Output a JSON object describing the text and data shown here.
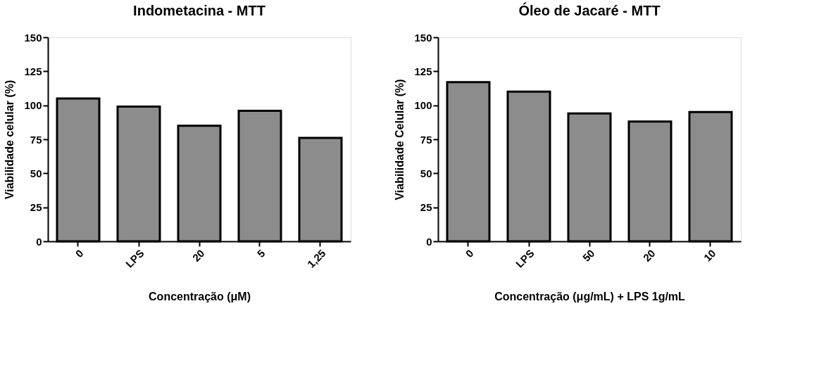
{
  "chart_data": [
    {
      "type": "bar",
      "title": "Indometacina - MTT",
      "xlabel": "Concentração (μM)",
      "ylabel": "Viabilidade celular (%)",
      "categories": [
        "0",
        "LPS",
        "20",
        "5",
        "1,25"
      ],
      "values": [
        105,
        99,
        85,
        96,
        76
      ],
      "color": "#8c8c8c",
      "ylim": [
        0,
        150
      ],
      "yticks": [
        0,
        25,
        50,
        75,
        100,
        125,
        150
      ]
    },
    {
      "type": "bar",
      "title": "Óleo de Jacaré - MTT",
      "xlabel": "Concentração (μg/mL) + LPS 1g/mL",
      "ylabel": "Viabilidade Celular (%)",
      "categories": [
        "0",
        "LPS",
        "50",
        "20",
        "10"
      ],
      "values": [
        117,
        110,
        94,
        88,
        95
      ],
      "color": "#8c8c8c",
      "ylim": [
        0,
        150
      ],
      "yticks": [
        0,
        25,
        50,
        75,
        100,
        125,
        150
      ]
    }
  ]
}
